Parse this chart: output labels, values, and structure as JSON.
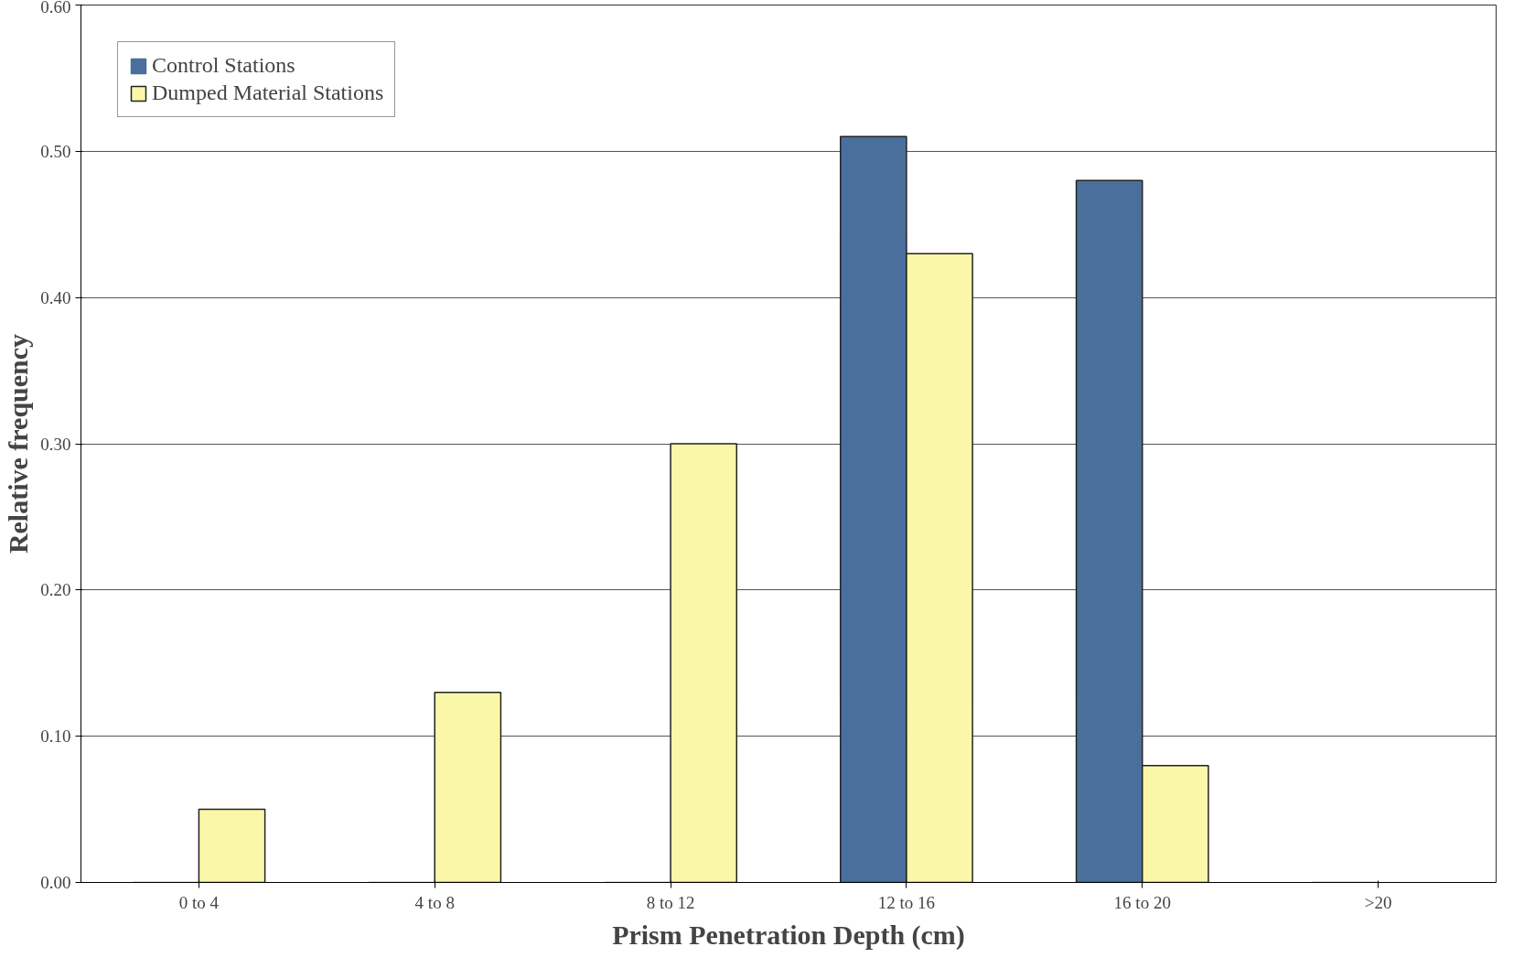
{
  "chart_data": {
    "type": "bar",
    "xlabel": "Prism Penetration Depth (cm)",
    "ylabel": "Relative frequency",
    "categories": [
      "0 to 4",
      "4 to 8",
      "8 to 12",
      "12 to 16",
      "16 to 20",
      ">20"
    ],
    "series": [
      {
        "name": "Control Stations",
        "color": "#4a6f9c",
        "values": [
          0,
          0,
          0,
          0.51,
          0.48,
          0
        ]
      },
      {
        "name": "Dumped Material Stations",
        "color": "#fbf7a8",
        "values": [
          0.05,
          0.13,
          0.3,
          0.43,
          0.08,
          0
        ]
      }
    ],
    "ylim": [
      0,
      0.6
    ],
    "yticks": [
      {
        "value": 0,
        "label": "0.00"
      },
      {
        "value": 0.1,
        "label": "0.10"
      },
      {
        "value": 0.2,
        "label": "0.20"
      },
      {
        "value": 0.3,
        "label": "0.30"
      },
      {
        "value": 0.4,
        "label": "0.40"
      },
      {
        "value": 0.5,
        "label": "0.50"
      },
      {
        "value": 0.6,
        "label": "0.60"
      }
    ],
    "grid": "y",
    "legend": "top left"
  }
}
